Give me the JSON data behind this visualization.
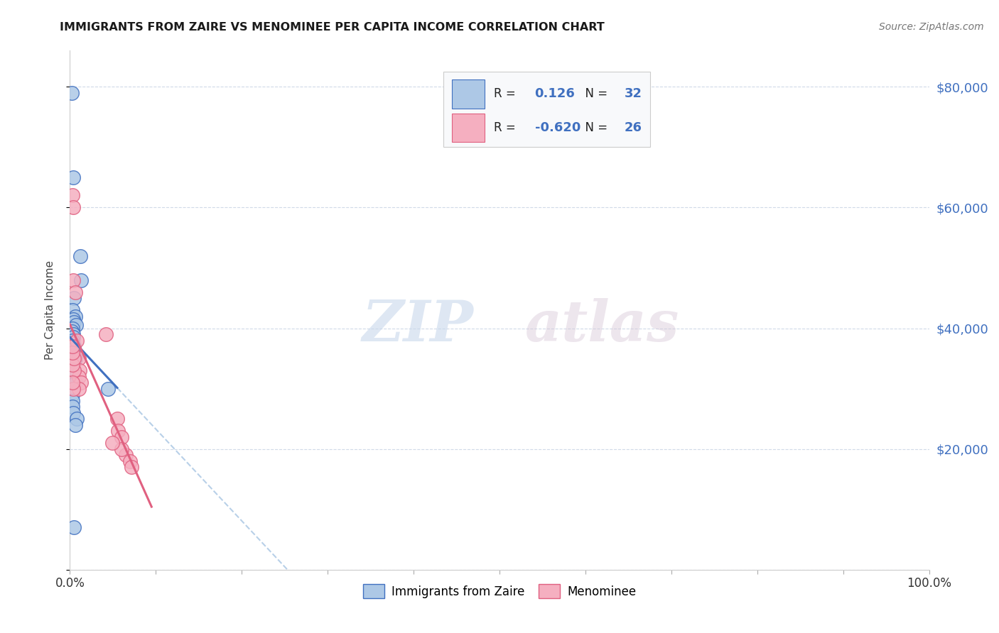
{
  "title": "IMMIGRANTS FROM ZAIRE VS MENOMINEE PER CAPITA INCOME CORRELATION CHART",
  "source": "Source: ZipAtlas.com",
  "ylabel": "Per Capita Income",
  "yticks": [
    0,
    20000,
    40000,
    60000,
    80000
  ],
  "ytick_labels": [
    "",
    "$20,000",
    "$40,000",
    "$60,000",
    "$80,000"
  ],
  "xlim": [
    0,
    100
  ],
  "ylim": [
    0,
    86000
  ],
  "blue_label": "Immigrants from Zaire",
  "pink_label": "Menominee",
  "blue_R": "0.126",
  "blue_N": "32",
  "pink_R": "-0.620",
  "pink_N": "26",
  "blue_color": "#adc8e6",
  "pink_color": "#f5afc0",
  "blue_line_color": "#4070c0",
  "pink_line_color": "#e06080",
  "dashed_line_color": "#b8d0e8",
  "blue_points_x": [
    0.2,
    0.4,
    1.2,
    1.3,
    0.5,
    0.3,
    0.6,
    0.4,
    0.5,
    0.7,
    0.3,
    0.2,
    0.4,
    0.4,
    0.3,
    0.3,
    0.5,
    0.4,
    0.3,
    0.4,
    0.6,
    0.5,
    0.3,
    0.6,
    4.4,
    0.3,
    0.3,
    0.3,
    0.4,
    0.8,
    0.6,
    0.5
  ],
  "blue_points_y": [
    79000,
    65000,
    52000,
    48000,
    45000,
    43000,
    42000,
    41500,
    41000,
    40500,
    40000,
    39500,
    39000,
    38500,
    38000,
    37500,
    37000,
    36500,
    36000,
    35500,
    35000,
    34500,
    32000,
    31000,
    30000,
    29000,
    28000,
    27000,
    26000,
    25000,
    24000,
    7000
  ],
  "pink_points_x": [
    0.3,
    0.4,
    0.4,
    0.6,
    0.8,
    1.0,
    1.1,
    1.0,
    1.3,
    4.2,
    5.5,
    5.6,
    6.0,
    6.5,
    7.0,
    7.2,
    6.0,
    4.9,
    1.0,
    0.5,
    0.3,
    0.5,
    0.3,
    0.3,
    0.4,
    0.3
  ],
  "pink_points_y": [
    62000,
    60000,
    48000,
    46000,
    38000,
    35000,
    33000,
    32000,
    31000,
    39000,
    25000,
    23000,
    22000,
    19000,
    18000,
    17000,
    20000,
    21000,
    30000,
    33000,
    34000,
    35000,
    36000,
    37000,
    30000,
    31000
  ],
  "watermark_zip": "ZIP",
  "watermark_atlas": "atlas",
  "background_color": "#ffffff"
}
